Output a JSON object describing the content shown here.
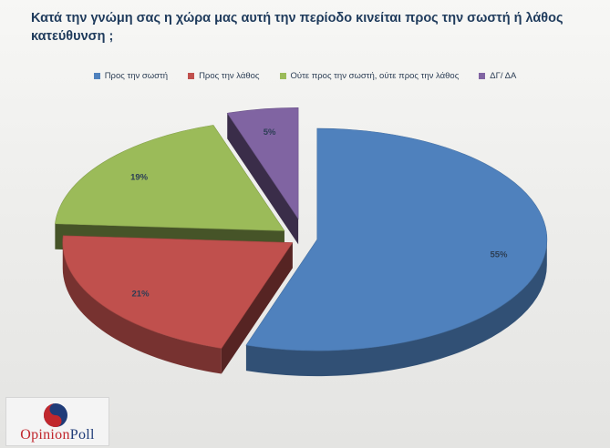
{
  "chart_data": {
    "type": "pie",
    "title": "Κατά την γνώμη σας η χώρα μας αυτή την περίοδο κινείται προς την σωστή ή λάθος κατεύθυνση ;",
    "legend_position": "top",
    "categories": [
      "Προς την σωστή",
      "Προς την λάθος",
      "Ούτε προς την σωστή, ούτε προς την λάθος",
      "ΔΓ/ ΔΑ"
    ],
    "values": [
      55,
      21,
      19,
      5
    ],
    "data_labels": [
      "55%",
      "21%",
      "19%",
      "5%"
    ],
    "colors": [
      "#4f81bd",
      "#c0504d",
      "#9bbb59",
      "#8064a2"
    ],
    "style": "3d-exploded"
  },
  "logo": {
    "text_part1": "Opinion",
    "text_part2": "Poll"
  }
}
